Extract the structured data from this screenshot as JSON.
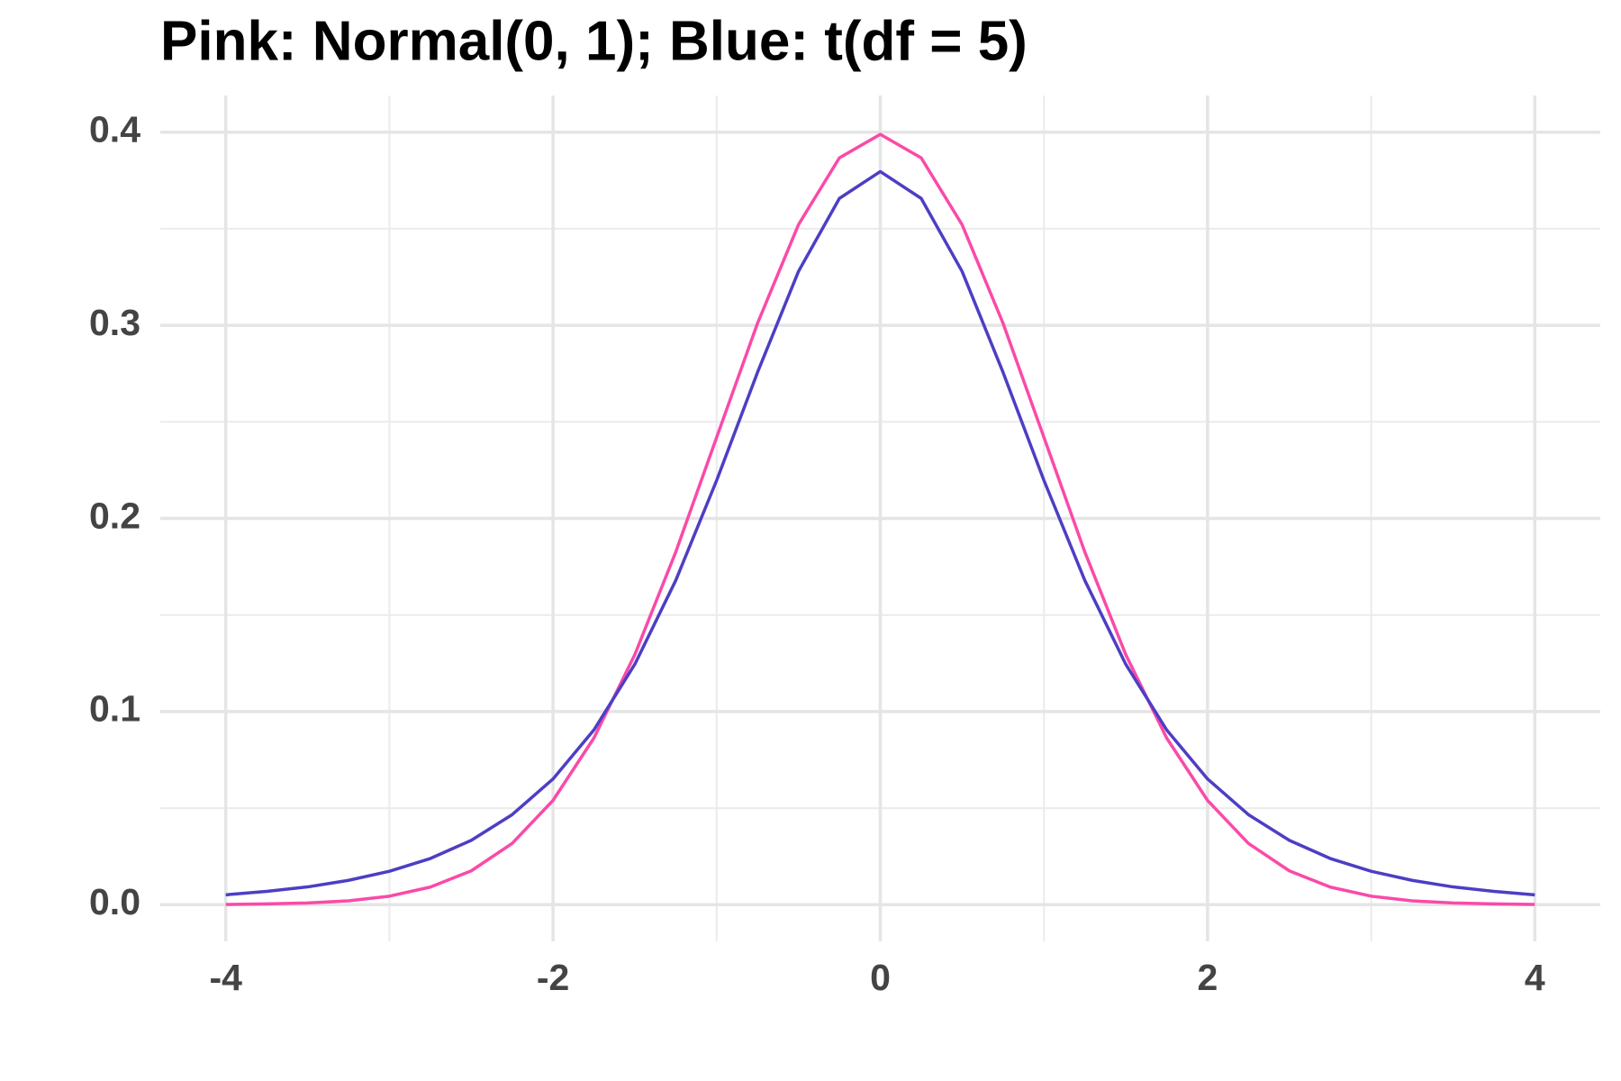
{
  "chart_data": {
    "type": "line",
    "title": "Pink: Normal(0, 1); Blue: t(df = 5)",
    "x": [
      -4,
      -3.75,
      -3.5,
      -3.25,
      -3,
      -2.75,
      -2.5,
      -2.25,
      -2,
      -1.75,
      -1.5,
      -1.25,
      -1,
      -0.75,
      -0.5,
      -0.25,
      0,
      0.25,
      0.5,
      0.75,
      1,
      1.25,
      1.5,
      1.75,
      2,
      2.25,
      2.5,
      2.75,
      3,
      3.25,
      3.5,
      3.75,
      4
    ],
    "series": [
      {
        "name": "Pink",
        "color": "#fa4aa8",
        "values": [
          0.0001,
          0.0004,
          0.0009,
          0.002,
          0.0044,
          0.0091,
          0.0175,
          0.0317,
          0.054,
          0.0863,
          0.1295,
          0.1826,
          0.242,
          0.3011,
          0.3521,
          0.3867,
          0.3989,
          0.3867,
          0.3521,
          0.3011,
          0.242,
          0.1826,
          0.1295,
          0.0863,
          0.054,
          0.0317,
          0.0175,
          0.0091,
          0.0044,
          0.002,
          0.0009,
          0.0004,
          0.0001
        ]
      },
      {
        "name": "Blue",
        "color": "#4d3ec4",
        "values": [
          0.0051,
          0.0069,
          0.0092,
          0.0126,
          0.0173,
          0.0239,
          0.0333,
          0.0466,
          0.0651,
          0.0905,
          0.1245,
          0.1679,
          0.2197,
          0.2757,
          0.3279,
          0.3657,
          0.3796,
          0.3657,
          0.3279,
          0.2757,
          0.2197,
          0.1679,
          0.1245,
          0.0905,
          0.0651,
          0.0466,
          0.0333,
          0.0239,
          0.0173,
          0.0126,
          0.0092,
          0.0069,
          0.0051
        ]
      }
    ],
    "xlim": [
      -4.4,
      4.4
    ],
    "ylim": [
      -0.019,
      0.419
    ],
    "xticks": [
      -4,
      -2,
      0,
      2,
      4
    ],
    "yticks": [
      {
        "value": 0,
        "label": "0.0"
      },
      0.1,
      0.2,
      0.3,
      0.4
    ],
    "x_minor_ticks": [
      -3,
      -1,
      1,
      3
    ],
    "y_minor_ticks": [
      0.05,
      0.15,
      0.25,
      0.35
    ],
    "grid": true
  }
}
